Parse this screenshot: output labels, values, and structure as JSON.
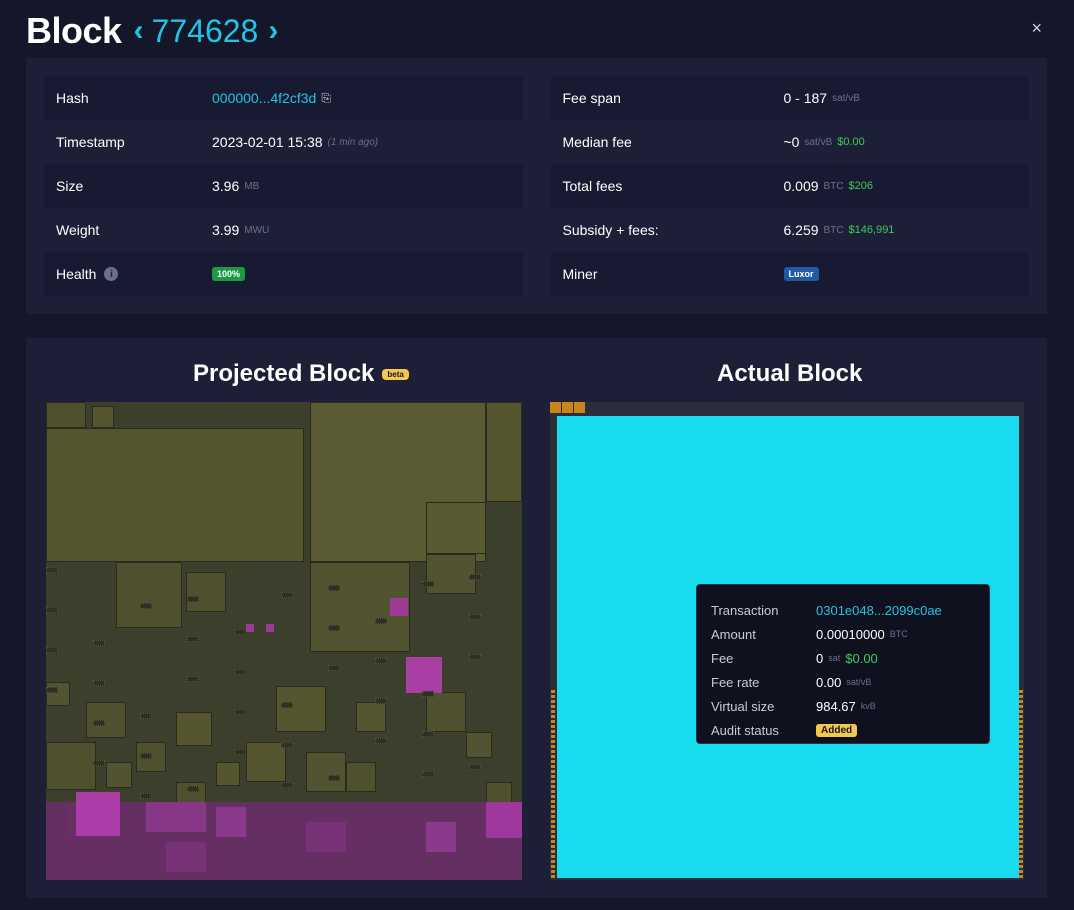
{
  "header": {
    "title": "Block",
    "prev_icon": "chevron-left-icon",
    "next_icon": "chevron-right-icon",
    "height": "774628",
    "close_label": "×"
  },
  "details": {
    "left": [
      {
        "label": "Hash",
        "value": "000000...4f2cf3d",
        "icon": "copy-icon"
      },
      {
        "label": "Timestamp",
        "value": "2023-02-01 15:38",
        "note": "(1 min ago)"
      },
      {
        "label": "Size",
        "value": "3.96",
        "unit": "MB"
      },
      {
        "label": "Weight",
        "value": "3.99",
        "unit": "MWU"
      },
      {
        "label": "Health",
        "badge": "100%",
        "icon": "info-icon"
      }
    ],
    "right": [
      {
        "label": "Fee span",
        "value": "0 - 187",
        "unit": "sat/vB"
      },
      {
        "label": "Median fee",
        "value": "~0",
        "unit": "sat/vB",
        "fiat": "$0.00"
      },
      {
        "label": "Total fees",
        "value": "0.009",
        "unit": "BTC",
        "fiat": "$206"
      },
      {
        "label": "Subsidy + fees:",
        "value": "6.259",
        "unit": "BTC",
        "fiat": "$146,991"
      },
      {
        "label": "Miner",
        "badge": "Luxor"
      }
    ]
  },
  "projected": {
    "title": "Projected Block",
    "badge": "beta"
  },
  "actual": {
    "title": "Actual Block"
  },
  "tooltip": {
    "transaction_label": "Transaction",
    "transaction_value": "0301e048...2099c0ae",
    "amount_label": "Amount",
    "amount_value": "0.00010000",
    "amount_unit": "BTC",
    "fee_label": "Fee",
    "fee_value": "0",
    "fee_unit": "sat",
    "fee_fiat": "$0.00",
    "feerate_label": "Fee rate",
    "feerate_value": "0.00",
    "feerate_unit": "sat/vB",
    "vsize_label": "Virtual size",
    "vsize_value": "984.67",
    "vsize_unit": "kvB",
    "audit_label": "Audit status",
    "audit_value": "Added"
  },
  "colors": {
    "accent": "#21c5e3",
    "fiat": "#3bcc5a",
    "tx_highlight": "#19dbf0",
    "tx_olive": "#5a5a2c",
    "tx_magenta": "#b53fb3",
    "tx_orange": "#c9851c"
  }
}
